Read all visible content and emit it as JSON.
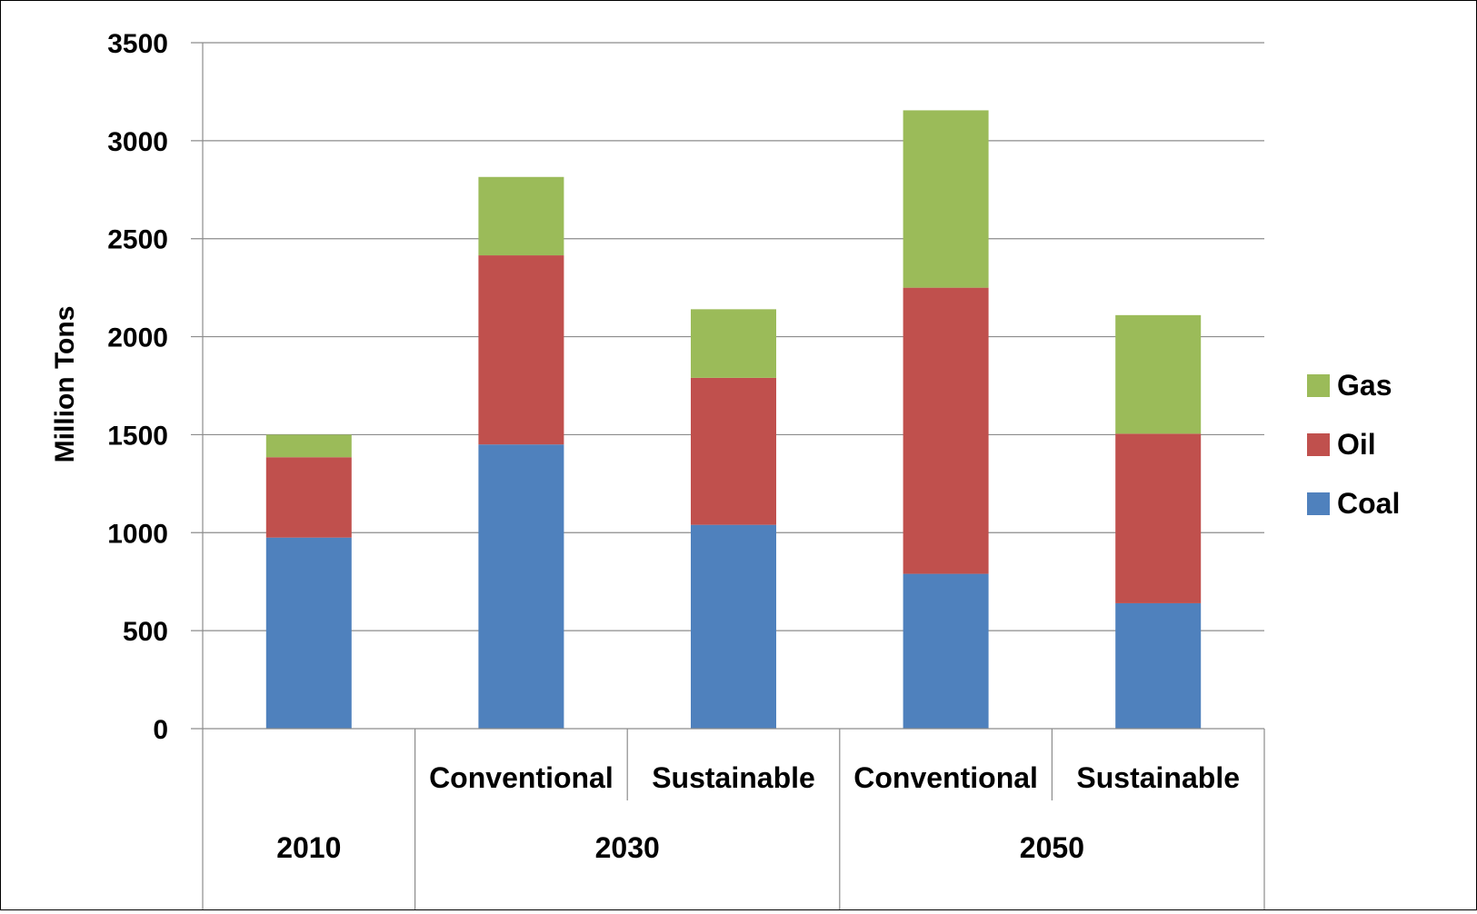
{
  "chart_data": {
    "type": "bar",
    "stacked": true,
    "ylabel": "Million Tons",
    "ylim": [
      0,
      3500
    ],
    "y_ticks": [
      "0",
      "500",
      "1000",
      "1500",
      "2000",
      "2500",
      "3000",
      "3500"
    ],
    "grid": true,
    "legend_position": "right",
    "categories": [
      "",
      "Conventional",
      "Sustainable",
      "Conventional",
      "Sustainable"
    ],
    "category_groups": [
      {
        "label": "2010",
        "span": 1
      },
      {
        "label": "2030",
        "span": 2
      },
      {
        "label": "2050",
        "span": 2
      }
    ],
    "series": [
      {
        "name": "Coal",
        "color": "#4F81BD",
        "values": [
          975,
          1450,
          1040,
          790,
          640
        ]
      },
      {
        "name": "Oil",
        "color": "#C0504D",
        "values": [
          410,
          965,
          750,
          1460,
          865
        ]
      },
      {
        "name": "Gas",
        "color": "#9BBB59",
        "values": [
          115,
          400,
          350,
          905,
          605
        ]
      }
    ]
  }
}
